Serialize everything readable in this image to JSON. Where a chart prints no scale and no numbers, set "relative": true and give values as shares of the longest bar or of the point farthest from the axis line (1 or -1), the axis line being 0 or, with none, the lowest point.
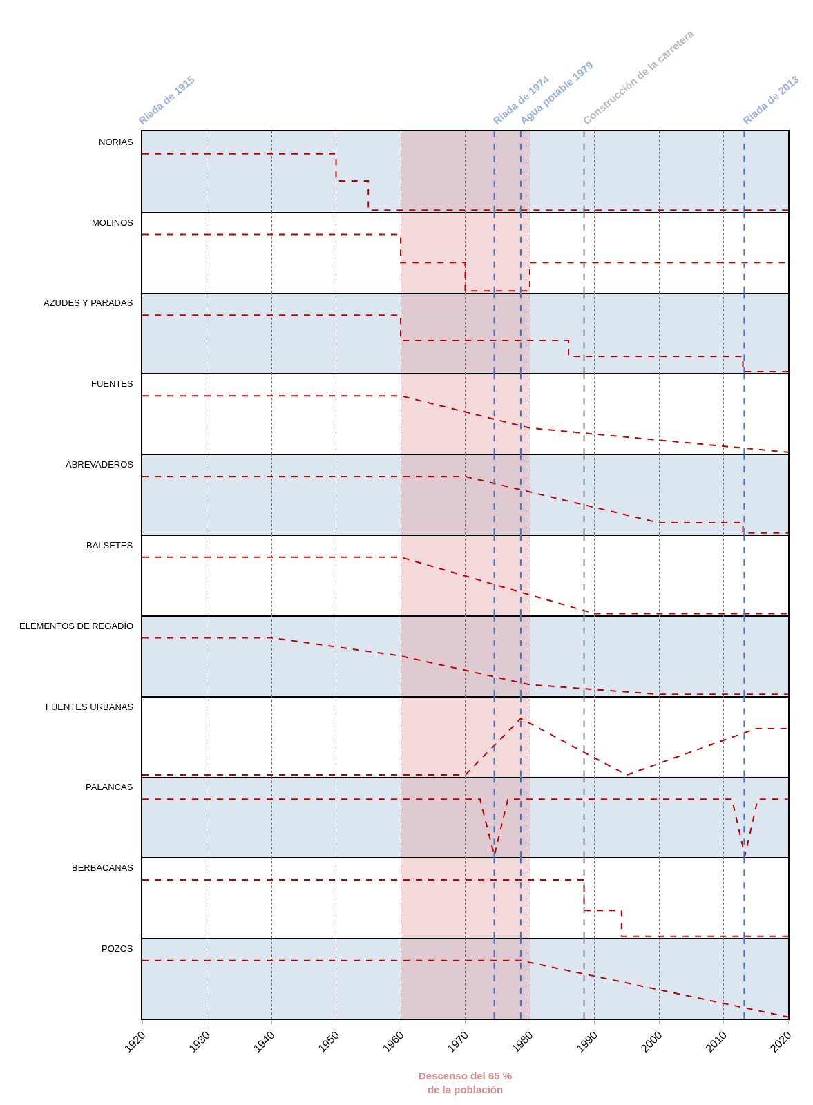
{
  "chart_data": [
    {
      "type": "line",
      "title": "NORIAS",
      "x": [
        1920,
        1950,
        1950,
        1955,
        1955,
        2020
      ],
      "values": [
        1,
        1,
        0.52,
        0.52,
        0,
        0
      ],
      "color": "#c00000",
      "line_style": "dashed",
      "relative": true,
      "xlim": [
        1920,
        2020
      ],
      "xticks": [
        1920,
        1930,
        1940,
        1950,
        1960,
        1970,
        1980,
        1990,
        2000,
        2010,
        2020
      ],
      "grid": "x",
      "tick_labels": false,
      "annotations": [
        "Riada de 1915"
      ],
      "ref_lines": [
        {
          "axis": "x",
          "value": 1974.5,
          "label": "Riada de 1974",
          "color": "#4472c4",
          "line_style": "dashed"
        },
        {
          "axis": "x",
          "value": 1978.6,
          "label": "Agua potable 1979",
          "color": "#4472c4",
          "line_style": "dashed"
        },
        {
          "axis": "x",
          "value": 1988.4,
          "label": "Construcción de la carretera",
          "color": "#808080",
          "line_style": "dashed"
        },
        {
          "axis": "x",
          "value": 2013.2,
          "label": "Riada de 2013",
          "color": "#4472c4",
          "line_style": "dashed"
        }
      ],
      "bands": [
        {
          "axis": "x",
          "from": 1960,
          "to": 1980,
          "color": "#e0a0a0"
        }
      ]
    },
    {
      "type": "line",
      "title": "MOLINOS",
      "x": [
        1920,
        1960,
        1960,
        1970,
        1970,
        1980,
        1980,
        2020
      ],
      "values": [
        1,
        1,
        0.5,
        0.5,
        0,
        0,
        0.5,
        0.5
      ],
      "color": "#c00000",
      "line_style": "dashed",
      "relative": true,
      "xlim": [
        1920,
        2020
      ],
      "xticks": [
        1920,
        1930,
        1940,
        1950,
        1960,
        1970,
        1980,
        1990,
        2000,
        2010,
        2020
      ],
      "grid": "x",
      "tick_labels": false,
      "ref_lines": [
        {
          "axis": "x",
          "value": 1974.5,
          "color": "#4472c4",
          "line_style": "dashed"
        },
        {
          "axis": "x",
          "value": 1978.6,
          "color": "#4472c4",
          "line_style": "dashed"
        },
        {
          "axis": "x",
          "value": 1988.4,
          "color": "#808080",
          "line_style": "dashed"
        },
        {
          "axis": "x",
          "value": 2013.2,
          "color": "#4472c4",
          "line_style": "dashed"
        }
      ],
      "bands": [
        {
          "axis": "x",
          "from": 1960,
          "to": 1980,
          "color": "#e0a0a0"
        }
      ]
    },
    {
      "type": "line",
      "title": "AZUDES Y PARADAS",
      "x": [
        1920,
        1960,
        1960,
        1986,
        1986,
        2013,
        2013,
        2020
      ],
      "values": [
        1,
        1,
        0.55,
        0.55,
        0.27,
        0.27,
        0,
        0
      ],
      "color": "#c00000",
      "line_style": "dashed",
      "relative": true,
      "xlim": [
        1920,
        2020
      ],
      "xticks": [
        1920,
        1930,
        1940,
        1950,
        1960,
        1970,
        1980,
        1990,
        2000,
        2010,
        2020
      ],
      "grid": "x",
      "tick_labels": false,
      "ref_lines": [
        {
          "axis": "x",
          "value": 1974.5,
          "color": "#4472c4",
          "line_style": "dashed"
        },
        {
          "axis": "x",
          "value": 1978.6,
          "color": "#4472c4",
          "line_style": "dashed"
        },
        {
          "axis": "x",
          "value": 1988.4,
          "color": "#808080",
          "line_style": "dashed"
        },
        {
          "axis": "x",
          "value": 2013.2,
          "color": "#4472c4",
          "line_style": "dashed"
        }
      ],
      "bands": [
        {
          "axis": "x",
          "from": 1960,
          "to": 1980,
          "color": "#e0a0a0"
        }
      ]
    },
    {
      "type": "line",
      "title": "FUENTES",
      "x": [
        1920,
        1960,
        1980,
        2020
      ],
      "values": [
        1,
        1,
        0.43,
        0
      ],
      "color": "#c00000",
      "line_style": "dashed",
      "relative": true,
      "xlim": [
        1920,
        2020
      ],
      "xticks": [
        1920,
        1930,
        1940,
        1950,
        1960,
        1970,
        1980,
        1990,
        2000,
        2010,
        2020
      ],
      "grid": "x",
      "tick_labels": false,
      "ref_lines": [
        {
          "axis": "x",
          "value": 1974.5,
          "color": "#4472c4",
          "line_style": "dashed"
        },
        {
          "axis": "x",
          "value": 1978.6,
          "color": "#4472c4",
          "line_style": "dashed"
        },
        {
          "axis": "x",
          "value": 1988.4,
          "color": "#808080",
          "line_style": "dashed"
        },
        {
          "axis": "x",
          "value": 2013.2,
          "color": "#4472c4",
          "line_style": "dashed"
        }
      ],
      "bands": [
        {
          "axis": "x",
          "from": 1960,
          "to": 1980,
          "color": "#e0a0a0"
        }
      ]
    },
    {
      "type": "line",
      "title": "ABREVADEROS",
      "x": [
        1920,
        1970,
        2000,
        2013,
        2013,
        2020
      ],
      "values": [
        1,
        1,
        0.18,
        0.18,
        0,
        0
      ],
      "color": "#c00000",
      "line_style": "dashed",
      "relative": true,
      "xlim": [
        1920,
        2020
      ],
      "xticks": [
        1920,
        1930,
        1940,
        1950,
        1960,
        1970,
        1980,
        1990,
        2000,
        2010,
        2020
      ],
      "grid": "x",
      "tick_labels": false,
      "ref_lines": [
        {
          "axis": "x",
          "value": 1974.5,
          "color": "#4472c4",
          "line_style": "dashed"
        },
        {
          "axis": "x",
          "value": 1978.6,
          "color": "#4472c4",
          "line_style": "dashed"
        },
        {
          "axis": "x",
          "value": 1988.4,
          "color": "#808080",
          "line_style": "dashed"
        },
        {
          "axis": "x",
          "value": 2013.2,
          "color": "#4472c4",
          "line_style": "dashed"
        }
      ],
      "bands": [
        {
          "axis": "x",
          "from": 1960,
          "to": 1980,
          "color": "#e0a0a0"
        }
      ]
    },
    {
      "type": "line",
      "title": "BALSETES",
      "x": [
        1920,
        1960,
        1990,
        2020
      ],
      "values": [
        1,
        1,
        0,
        0
      ],
      "color": "#c00000",
      "line_style": "dashed",
      "relative": true,
      "xlim": [
        1920,
        2020
      ],
      "xticks": [
        1920,
        1930,
        1940,
        1950,
        1960,
        1970,
        1980,
        1990,
        2000,
        2010,
        2020
      ],
      "grid": "x",
      "tick_labels": false,
      "ref_lines": [
        {
          "axis": "x",
          "value": 1974.5,
          "color": "#4472c4",
          "line_style": "dashed"
        },
        {
          "axis": "x",
          "value": 1978.6,
          "color": "#4472c4",
          "line_style": "dashed"
        },
        {
          "axis": "x",
          "value": 1988.4,
          "color": "#808080",
          "line_style": "dashed"
        },
        {
          "axis": "x",
          "value": 2013.2,
          "color": "#4472c4",
          "line_style": "dashed"
        }
      ],
      "bands": [
        {
          "axis": "x",
          "from": 1960,
          "to": 1980,
          "color": "#e0a0a0"
        }
      ]
    },
    {
      "type": "line",
      "title": "ELEMENTOS DE REGADÍO",
      "x": [
        1920,
        1940,
        1960,
        1980,
        2000,
        2020
      ],
      "values": [
        1,
        1,
        0.68,
        0.17,
        0,
        0
      ],
      "color": "#c00000",
      "line_style": "dashed",
      "relative": true,
      "xlim": [
        1920,
        2020
      ],
      "xticks": [
        1920,
        1930,
        1940,
        1950,
        1960,
        1970,
        1980,
        1990,
        2000,
        2010,
        2020
      ],
      "grid": "x",
      "tick_labels": false,
      "ref_lines": [
        {
          "axis": "x",
          "value": 1974.5,
          "color": "#4472c4",
          "line_style": "dashed"
        },
        {
          "axis": "x",
          "value": 1978.6,
          "color": "#4472c4",
          "line_style": "dashed"
        },
        {
          "axis": "x",
          "value": 1988.4,
          "color": "#808080",
          "line_style": "dashed"
        },
        {
          "axis": "x",
          "value": 2013.2,
          "color": "#4472c4",
          "line_style": "dashed"
        }
      ],
      "bands": [
        {
          "axis": "x",
          "from": 1960,
          "to": 1980,
          "color": "#e0a0a0"
        }
      ]
    },
    {
      "type": "line",
      "title": "FUENTES URBANAS",
      "x": [
        1920,
        1970,
        1978.6,
        1995,
        2015,
        2020
      ],
      "values": [
        0,
        0,
        1,
        0,
        0.82,
        0.82
      ],
      "color": "#c00000",
      "line_style": "dashed",
      "relative": true,
      "xlim": [
        1920,
        2020
      ],
      "xticks": [
        1920,
        1930,
        1940,
        1950,
        1960,
        1970,
        1980,
        1990,
        2000,
        2010,
        2020
      ],
      "grid": "x",
      "tick_labels": false,
      "ref_lines": [
        {
          "axis": "x",
          "value": 1974.5,
          "color": "#4472c4",
          "line_style": "dashed"
        },
        {
          "axis": "x",
          "value": 1978.6,
          "color": "#4472c4",
          "line_style": "dashed"
        },
        {
          "axis": "x",
          "value": 1988.4,
          "color": "#808080",
          "line_style": "dashed"
        },
        {
          "axis": "x",
          "value": 2013.2,
          "color": "#4472c4",
          "line_style": "dashed"
        }
      ],
      "bands": [
        {
          "axis": "x",
          "from": 1960,
          "to": 1980,
          "color": "#e0a0a0"
        }
      ]
    },
    {
      "type": "line",
      "title": "PALANCAS",
      "x": [
        1920,
        1972.3,
        1974.5,
        1976.6,
        2011.3,
        2013.3,
        2015.3,
        2020
      ],
      "values": [
        1,
        1,
        0,
        1,
        1,
        0,
        1,
        1
      ],
      "color": "#c00000",
      "line_style": "dashed",
      "relative": true,
      "xlim": [
        1920,
        2020
      ],
      "xticks": [
        1920,
        1930,
        1940,
        1950,
        1960,
        1970,
        1980,
        1990,
        2000,
        2010,
        2020
      ],
      "grid": "x",
      "tick_labels": false,
      "ref_lines": [
        {
          "axis": "x",
          "value": 1974.5,
          "color": "#4472c4",
          "line_style": "dashed"
        },
        {
          "axis": "x",
          "value": 1978.6,
          "color": "#4472c4",
          "line_style": "dashed"
        },
        {
          "axis": "x",
          "value": 1988.4,
          "color": "#808080",
          "line_style": "dashed"
        },
        {
          "axis": "x",
          "value": 2013.2,
          "color": "#4472c4",
          "line_style": "dashed"
        }
      ],
      "bands": [
        {
          "axis": "x",
          "from": 1960,
          "to": 1980,
          "color": "#e0a0a0"
        }
      ]
    },
    {
      "type": "line",
      "title": "BERBACANAS",
      "x": [
        1920,
        1988.4,
        1988.4,
        1994.2,
        1994.2,
        2020
      ],
      "values": [
        1,
        1,
        0.46,
        0.46,
        0,
        0
      ],
      "color": "#c00000",
      "line_style": "dashed",
      "relative": true,
      "xlim": [
        1920,
        2020
      ],
      "xticks": [
        1920,
        1930,
        1940,
        1950,
        1960,
        1970,
        1980,
        1990,
        2000,
        2010,
        2020
      ],
      "grid": "x",
      "tick_labels": false,
      "ref_lines": [
        {
          "axis": "x",
          "value": 1974.5,
          "color": "#4472c4",
          "line_style": "dashed"
        },
        {
          "axis": "x",
          "value": 1978.6,
          "color": "#4472c4",
          "line_style": "dashed"
        },
        {
          "axis": "x",
          "value": 1988.4,
          "color": "#808080",
          "line_style": "dashed"
        },
        {
          "axis": "x",
          "value": 2013.2,
          "color": "#4472c4",
          "line_style": "dashed"
        }
      ],
      "bands": [
        {
          "axis": "x",
          "from": 1960,
          "to": 1980,
          "color": "#e0a0a0"
        }
      ]
    },
    {
      "type": "line",
      "title": "POZOS",
      "x": [
        1920,
        1978.6,
        2020
      ],
      "values": [
        1,
        1,
        0
      ],
      "color": "#c00000",
      "line_style": "dashed",
      "relative": true,
      "xlim": [
        1920,
        2020
      ],
      "xticks": [
        1920,
        1930,
        1940,
        1950,
        1960,
        1970,
        1980,
        1990,
        2000,
        2010,
        2020
      ],
      "grid": "x",
      "tick_labels": "x",
      "ref_lines": [
        {
          "axis": "x",
          "value": 1974.5,
          "color": "#4472c4",
          "line_style": "dashed"
        },
        {
          "axis": "x",
          "value": 1978.6,
          "color": "#4472c4",
          "line_style": "dashed"
        },
        {
          "axis": "x",
          "value": 1988.4,
          "color": "#808080",
          "line_style": "dashed"
        },
        {
          "axis": "x",
          "value": 2013.2,
          "color": "#4472c4",
          "line_style": "dashed"
        }
      ],
      "bands": [
        {
          "axis": "x",
          "from": 1960,
          "to": 1980,
          "color": "#e0a0a0",
          "label": "Descenso del 65 %\nde la población"
        }
      ]
    }
  ]
}
